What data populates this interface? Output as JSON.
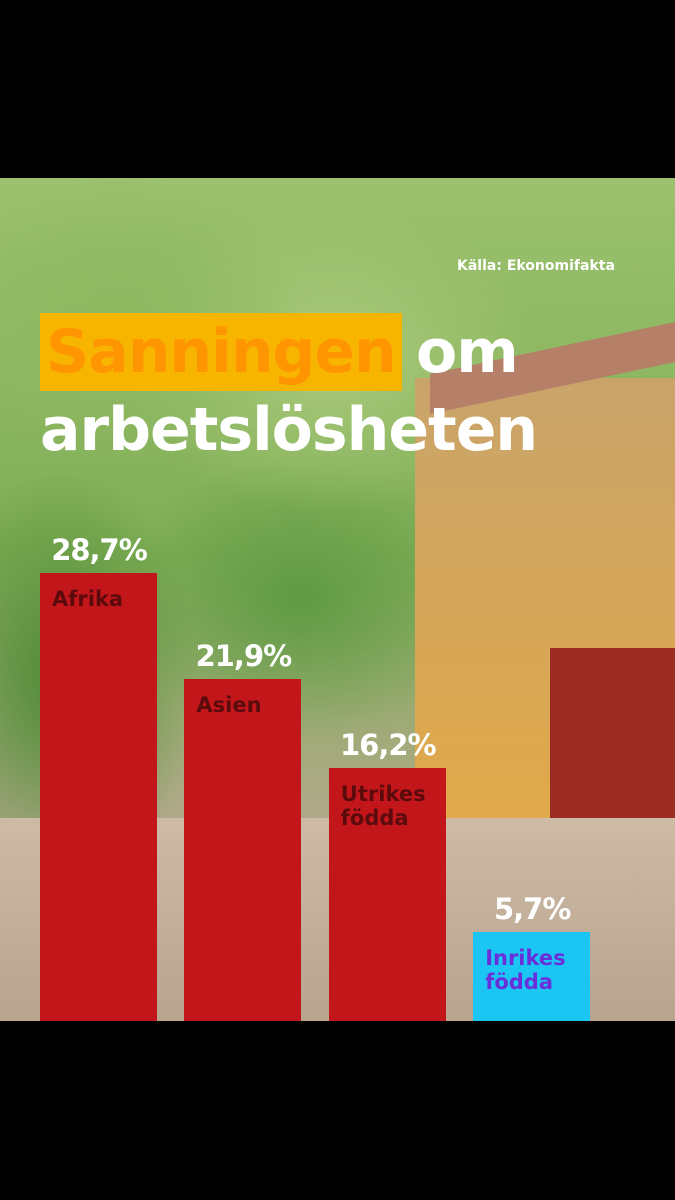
{
  "chart_data": {
    "type": "bar",
    "title_parts": [
      "Sanningen",
      "om arbetslösheten"
    ],
    "source": "Källa: Ekonomifakta",
    "categories": [
      "Afrika",
      "Asien",
      "Utrikes födda",
      "Inrikes födda"
    ],
    "values": [
      28.7,
      21.9,
      16.2,
      5.7
    ],
    "value_labels": [
      "28,7%",
      "21,9%",
      "16,2%",
      "5,7%"
    ],
    "colors": [
      "#c3161b",
      "#c3161b",
      "#c3161b",
      "#1cc6f4"
    ],
    "label_colors": [
      "#5c0b0d",
      "#5c0b0d",
      "#5c0b0d",
      "#6b2fd9"
    ]
  }
}
